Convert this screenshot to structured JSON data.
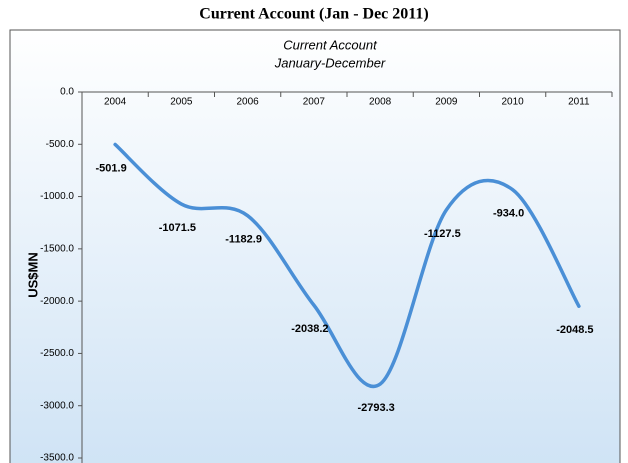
{
  "title": "Current Account  (Jan - Dec 2011)",
  "chart_data": {
    "type": "line",
    "title": "Current Account",
    "subtitle": "January-December",
    "y_label": "US$MN",
    "categories": [
      "2004",
      "2005",
      "2006",
      "2007",
      "2008",
      "2009",
      "2010",
      "2011"
    ],
    "values": [
      -501.9,
      -1071.5,
      -1182.9,
      -2038.2,
      -2793.3,
      -1127.5,
      -934.0,
      -2048.5
    ],
    "value_labels": [
      "-501.9",
      "-1071.5",
      "-1182.9",
      "-2038.2",
      "-2793.3",
      "-1127.5",
      "-934.0",
      "-2048.5"
    ],
    "color": "#4a8fd6",
    "ylim": [
      -3500,
      0
    ],
    "yticks": [
      {
        "value": 0,
        "label": "0.0"
      },
      {
        "value": -500,
        "label": "-500.0"
      },
      {
        "value": -1000,
        "label": "-1000.0"
      },
      {
        "value": -1500,
        "label": "-1500.0"
      },
      {
        "value": -2000,
        "label": "-2000.0"
      },
      {
        "value": -2500,
        "label": "-2500.0"
      },
      {
        "value": -3000,
        "label": "-3000.0"
      },
      {
        "value": -3500,
        "label": "-3500.0"
      }
    ]
  }
}
